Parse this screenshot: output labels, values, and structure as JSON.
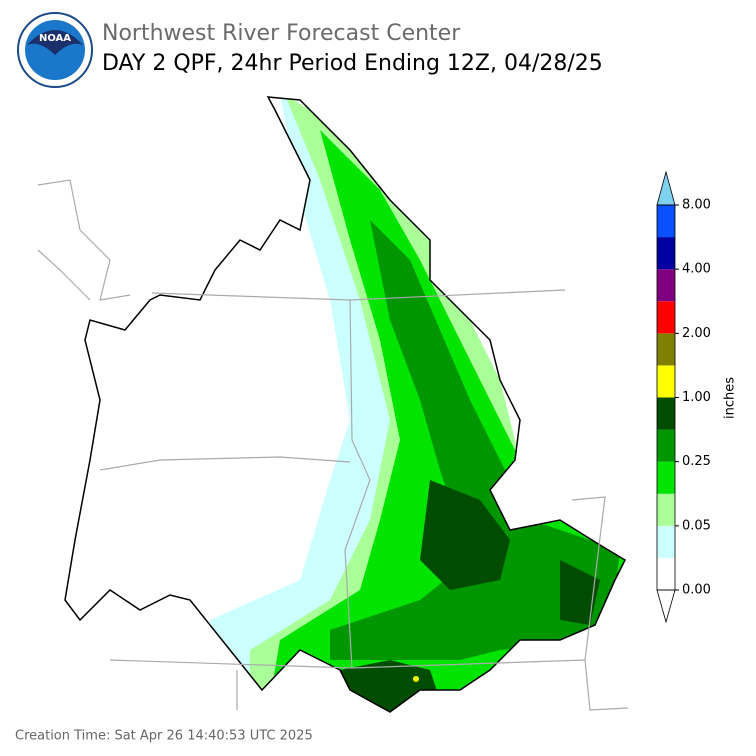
{
  "header": {
    "title": "Northwest River Forecast Center",
    "subtitle": "DAY 2 QPF, 24hr Period Ending 12Z, 04/28/25"
  },
  "colorbar": {
    "unit": "inches",
    "tick_labels": [
      "0.00",
      "0.05",
      "0.25",
      "1.00",
      "2.00",
      "4.00",
      "8.00"
    ],
    "colors": [
      "#ffffff",
      "#ccffff",
      "#aaff99",
      "#00e400",
      "#009600",
      "#004c00",
      "#ffff00",
      "#808000",
      "#ff0000",
      "#800080",
      "#0000a0",
      "#0a50ff"
    ],
    "over_color": "#80d0f0"
  },
  "footer": {
    "creation_time": "Creation Time: Sat Apr 26 14:40:53 UTC 2025"
  }
}
